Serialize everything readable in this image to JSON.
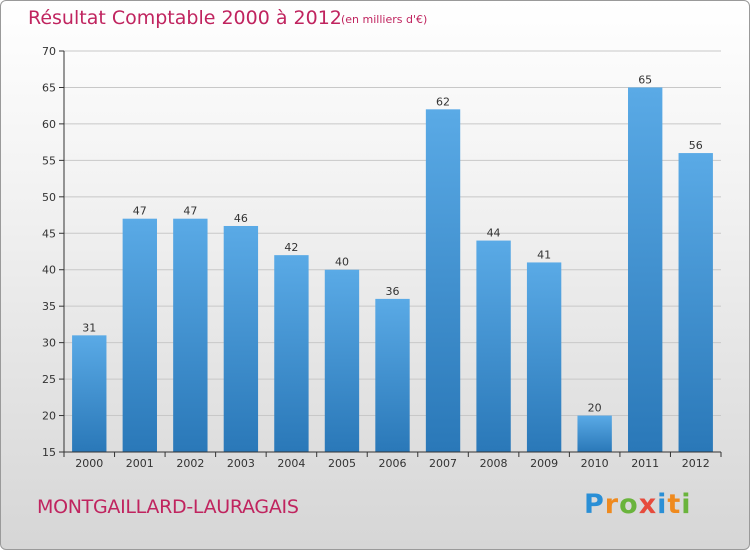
{
  "title": "Résultat Comptable 2000 à 2012",
  "subtitle": "(en milliers d'€)",
  "commune": "MONTGAILLARD-LAURAGAIS",
  "logo": {
    "letters": [
      "P",
      "r",
      "o",
      "x",
      "i",
      "t",
      "i"
    ],
    "colors": [
      "#2a8fd6",
      "#ef8a1e",
      "#6ab43c",
      "#e64b3c",
      "#2a8fd6",
      "#ef8a1e",
      "#6ab43c"
    ]
  },
  "colors": {
    "bar_top": "#5aaae6",
    "bar_bottom": "#2a78b8",
    "text_accent": "#c0245f",
    "axis": "#333333",
    "grid": "#c8c8c8"
  },
  "chart_data": {
    "type": "bar",
    "title": "Résultat Comptable 2000 à 2012",
    "subtitle": "(en milliers d'€)",
    "xlabel": "",
    "ylabel": "",
    "categories": [
      "2000",
      "2001",
      "2002",
      "2003",
      "2004",
      "2005",
      "2006",
      "2007",
      "2008",
      "2009",
      "2010",
      "2011",
      "2012"
    ],
    "values": [
      31,
      47,
      47,
      46,
      42,
      40,
      36,
      62,
      44,
      41,
      20,
      65,
      56
    ],
    "ylim": [
      15,
      70
    ],
    "yticks": [
      15,
      20,
      25,
      30,
      35,
      40,
      45,
      50,
      55,
      60,
      65,
      70
    ],
    "grid": true
  }
}
